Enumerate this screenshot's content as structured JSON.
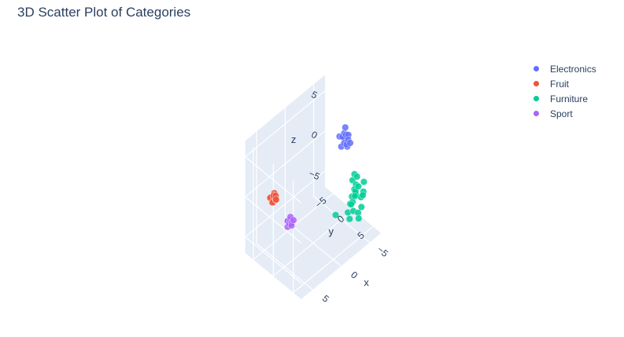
{
  "chart_data": {
    "type": "scatter3d",
    "title": "3D Scatter Plot of Categories",
    "axes": {
      "x": {
        "label": "x",
        "ticks": [
          "−5",
          "0",
          "5"
        ],
        "range": [
          -7,
          7
        ]
      },
      "y": {
        "label": "y",
        "ticks": [
          "−5",
          "0",
          "5"
        ],
        "range": [
          -7,
          7
        ]
      },
      "z": {
        "label": "z",
        "ticks": [
          "−5",
          "0",
          "5"
        ],
        "range": [
          -7,
          7
        ]
      }
    },
    "legend_position": "top-right",
    "series": [
      {
        "name": "Electronics",
        "color": "#636efa",
        "points": [
          [
            -4.2,
            1.8,
            5.0
          ],
          [
            -4.0,
            2.5,
            5.2
          ],
          [
            -4.7,
            2.1,
            4.6
          ],
          [
            -3.5,
            1.6,
            4.9
          ],
          [
            -4.1,
            2.9,
            4.7
          ],
          [
            -4.8,
            1.2,
            5.1
          ],
          [
            -3.7,
            3.1,
            4.4
          ],
          [
            -4.4,
            1.5,
            4.2
          ],
          [
            -3.3,
            2.6,
            5.4
          ],
          [
            -3.9,
            2.2,
            4.1
          ],
          [
            -4.6,
            2.7,
            3.9
          ],
          [
            -3.6,
            1.9,
            3.7
          ],
          [
            -4.3,
            2.4,
            3.5
          ]
        ]
      },
      {
        "name": "Fruit",
        "color": "#ef553b",
        "points": [
          [
            4.1,
            -4.0,
            -0.5
          ],
          [
            4.5,
            -3.7,
            -0.8
          ],
          [
            3.8,
            -4.3,
            -0.3
          ],
          [
            4.3,
            -4.5,
            -0.6
          ],
          [
            3.9,
            -3.8,
            -0.9
          ],
          [
            4.6,
            -4.2,
            -0.4
          ],
          [
            4.0,
            -3.6,
            -0.7
          ],
          [
            4.4,
            -4.0,
            -1.0
          ],
          [
            3.7,
            -4.1,
            -0.6
          ],
          [
            4.2,
            -3.9,
            -0.2
          ]
        ]
      },
      {
        "name": "Furniture",
        "color": "#00cc96",
        "points": [
          [
            -4.0,
            5.0,
            0.0
          ],
          [
            -3.5,
            5.6,
            -0.3
          ],
          [
            -4.6,
            4.4,
            0.4
          ],
          [
            -3.8,
            5.2,
            -1.0
          ],
          [
            -4.2,
            4.7,
            -1.5
          ],
          [
            -3.2,
            5.9,
            -0.6
          ],
          [
            -4.8,
            5.1,
            -2.0
          ],
          [
            -3.9,
            4.3,
            -2.4
          ],
          [
            -4.4,
            5.8,
            -2.7
          ],
          [
            -3.6,
            4.9,
            -3.1
          ],
          [
            -4.1,
            5.4,
            -3.4
          ],
          [
            -3.0,
            5.2,
            -1.8
          ],
          [
            -4.7,
            4.6,
            -0.8
          ],
          [
            -3.3,
            4.5,
            -2.2
          ],
          [
            -4.5,
            6.0,
            -1.2
          ],
          [
            -2.8,
            4.7,
            -2.9
          ],
          [
            -3.7,
            6.1,
            -3.6
          ],
          [
            -4.3,
            4.2,
            0.8
          ],
          [
            -5.1,
            5.3,
            -1.4
          ],
          [
            -3.1,
            5.9,
            0.3
          ],
          [
            -2.6,
            5.4,
            -3.3
          ],
          [
            -4.0,
            4.0,
            -1.9
          ],
          [
            -1.2,
            3.9,
            -2.6
          ],
          [
            -4.9,
            5.7,
            0.1
          ],
          [
            -3.4,
            5.0,
            0.9
          ]
        ]
      },
      {
        "name": "Sport",
        "color": "#ab63fa",
        "points": [
          [
            3.0,
            -1.5,
            -3.0
          ],
          [
            3.3,
            -1.2,
            -3.2
          ],
          [
            2.8,
            -1.7,
            -2.8
          ],
          [
            3.1,
            -1.0,
            -3.4
          ],
          [
            3.4,
            -1.6,
            -2.9
          ],
          [
            2.9,
            -1.3,
            -3.3
          ],
          [
            3.2,
            -1.8,
            -3.1
          ],
          [
            2.7,
            -1.1,
            -3.0
          ],
          [
            3.5,
            -1.4,
            -3.5
          ]
        ]
      }
    ]
  }
}
